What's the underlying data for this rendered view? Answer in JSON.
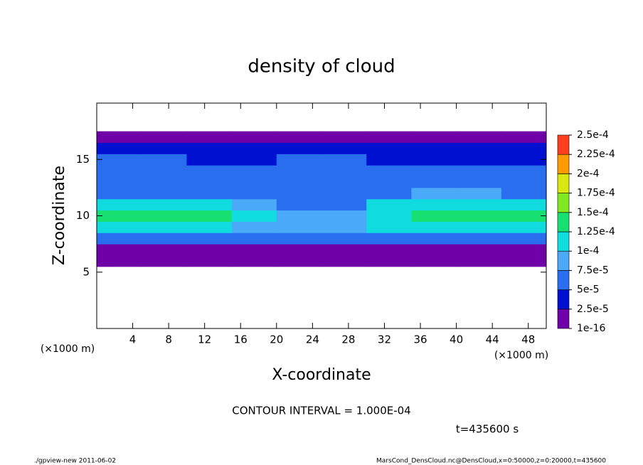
{
  "chart_data": {
    "type": "heatmap",
    "title": "density of cloud",
    "x_label": "X-coordinate",
    "y_label": "Z-coordinate",
    "x_units": "(×1000 m)",
    "y_units": "(×1000 m)",
    "annotation": "CONTOUR INTERVAL = 1.000E-04",
    "time_label": "t=435600 s",
    "footer_left": "./gpview-new  2011-06-02",
    "footer_right": "MarsCond_DensCloud.nc@DensCloud,x=0:50000,z=0:20000,t=435600",
    "xlim": [
      0,
      50
    ],
    "xticks": [
      4,
      8,
      12,
      16,
      20,
      24,
      28,
      32,
      36,
      40,
      44,
      48
    ],
    "ylim": [
      0,
      20
    ],
    "yticks": [
      5,
      10,
      15
    ],
    "x": [
      2.5,
      7.5,
      12.5,
      17.5,
      22.5,
      27.5,
      32.5,
      37.5,
      42.5,
      47.5
    ],
    "z": [
      6,
      7,
      8,
      9,
      10,
      11,
      12,
      13,
      14,
      15,
      16,
      17
    ],
    "values": [
      [
        1e-10,
        1e-10,
        1e-10,
        1e-10,
        1e-10,
        1e-10,
        1e-10,
        1e-10,
        1e-10,
        1e-10
      ],
      [
        2e-05,
        2e-05,
        2e-05,
        2e-05,
        2e-05,
        2e-05,
        2e-05,
        2e-05,
        2e-05,
        2e-05
      ],
      [
        6e-05,
        6.5e-05,
        6e-05,
        5.5e-05,
        5e-05,
        5e-05,
        6e-05,
        6.5e-05,
        7e-05,
        6.5e-05
      ],
      [
        0.000105,
        0.00011,
        0.000105,
        9e-05,
        8e-05,
        8e-05,
        0.0001,
        0.00011,
        0.00011,
        0.000105
      ],
      [
        0.00013,
        0.000135,
        0.00013,
        0.00011,
        9e-05,
        8.5e-05,
        0.00012,
        0.00013,
        0.000135,
        0.00013
      ],
      [
        0.00011,
        0.000115,
        0.000105,
        8e-05,
        7e-05,
        7e-05,
        0.0001,
        0.000115,
        0.00012,
        0.00011
      ],
      [
        7e-05,
        6.5e-05,
        6e-05,
        6e-05,
        6.5e-05,
        6.5e-05,
        6e-05,
        7.5e-05,
        8e-05,
        7e-05
      ],
      [
        6e-05,
        6e-05,
        5.5e-05,
        5.5e-05,
        6e-05,
        6e-05,
        5.5e-05,
        6e-05,
        6e-05,
        6e-05
      ],
      [
        5.5e-05,
        5.5e-05,
        5e-05,
        5e-05,
        5.5e-05,
        5.5e-05,
        5e-05,
        5e-05,
        5.5e-05,
        5.5e-05
      ],
      [
        5e-05,
        5e-05,
        4.5e-05,
        4.5e-05,
        5e-05,
        5e-05,
        4.5e-05,
        4e-05,
        4e-05,
        4.5e-05
      ],
      [
        3e-05,
        3e-05,
        3e-05,
        3e-05,
        3e-05,
        3e-05,
        3e-05,
        2.8e-05,
        2.8e-05,
        3e-05
      ],
      [
        1e-10,
        1e-10,
        1e-10,
        1e-10,
        1e-10,
        1e-10,
        1e-10,
        1e-10,
        1e-10,
        1e-10
      ]
    ],
    "colorbar": {
      "levels": [
        {
          "value": 1e-16,
          "label": "1e-16"
        },
        {
          "value": 2.5e-05,
          "label": "2.5e-5"
        },
        {
          "value": 5e-05,
          "label": "5e-5"
        },
        {
          "value": 7.5e-05,
          "label": "7.5e-5"
        },
        {
          "value": 0.0001,
          "label": "1e-4"
        },
        {
          "value": 0.000125,
          "label": "1.25e-4"
        },
        {
          "value": 0.00015,
          "label": "1.5e-4"
        },
        {
          "value": 0.000175,
          "label": "1.75e-4"
        },
        {
          "value": 0.0002,
          "label": "2e-4"
        },
        {
          "value": 0.000225,
          "label": "2.25e-4"
        },
        {
          "value": 0.00025,
          "label": "2.5e-4"
        }
      ],
      "colors": [
        "#7000a8",
        "#0010d0",
        "#2a6ef0",
        "#4aaaf8",
        "#10dce0",
        "#18e070",
        "#80e820",
        "#d8e810",
        "#ff9a00",
        "#ff4020",
        "#ff9ca8"
      ]
    }
  }
}
